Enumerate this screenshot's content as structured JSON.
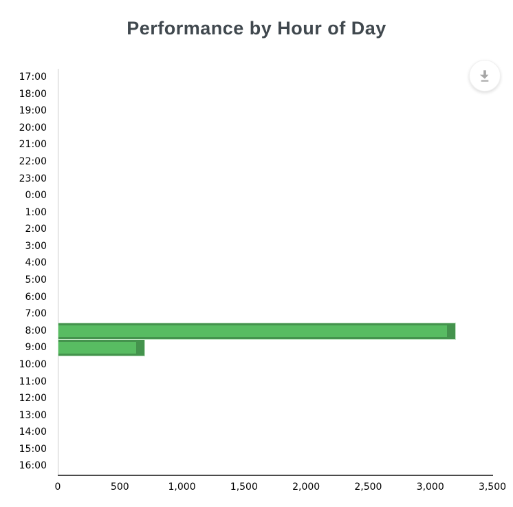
{
  "title": "Performance by Hour of Day",
  "toolbar": {
    "export_icon": "download-icon"
  },
  "chart_data": {
    "type": "bar",
    "orientation": "horizontal",
    "title": "Performance by Hour of Day",
    "categories": [
      "17:00",
      "18:00",
      "19:00",
      "20:00",
      "21:00",
      "22:00",
      "23:00",
      "0:00",
      "1:00",
      "2:00",
      "3:00",
      "4:00",
      "5:00",
      "6:00",
      "7:00",
      "8:00",
      "9:00",
      "10:00",
      "11:00",
      "12:00",
      "13:00",
      "14:00",
      "15:00",
      "16:00"
    ],
    "values": [
      0,
      0,
      0,
      0,
      0,
      0,
      0,
      0,
      0,
      0,
      0,
      0,
      0,
      0,
      0,
      3200,
      700,
      0,
      0,
      0,
      0,
      0,
      0,
      0
    ],
    "xlabel": "",
    "ylabel": "",
    "xlim": [
      0,
      3500
    ],
    "x_tick_values": [
      0,
      500,
      1000,
      1500,
      2000,
      2500,
      3000,
      3500
    ],
    "x_tick_labels": [
      "0",
      "500",
      "1,000",
      "1,500",
      "2,000",
      "2,500",
      "3,000",
      "3,500"
    ],
    "grid": false,
    "legend": "none",
    "bar_fill_color": "#58bc62",
    "bar_side_color": "#44934d",
    "bar_edge_color": "#c5e5c7",
    "y_axis_line_color": "#c9c9c9",
    "x_axis_line_color": "#4a4a4a",
    "title_color": "#40484e"
  }
}
